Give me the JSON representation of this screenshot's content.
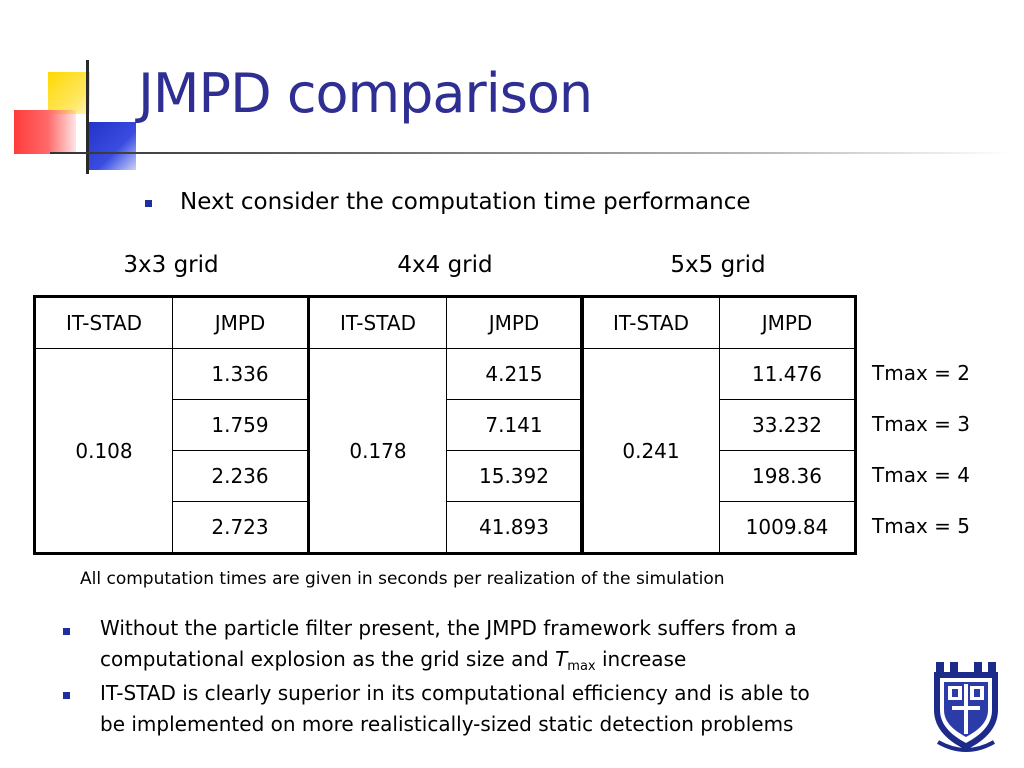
{
  "slide": {
    "title": "JMPD comparison",
    "intro_bullet": "Next consider the computation time performance"
  },
  "grids": [
    {
      "label": "3x3 grid",
      "col1": "IT-STAD",
      "col2": "JMPD",
      "itstad": "0.108",
      "jmpd": [
        "1.336",
        "1.759",
        "2.236",
        "2.723"
      ]
    },
    {
      "label": "4x4 grid",
      "col1": "IT-STAD",
      "col2": "JMPD",
      "itstad": "0.178",
      "jmpd": [
        "4.215",
        "7.141",
        "15.392",
        "41.893"
      ]
    },
    {
      "label": "5x5 grid",
      "col1": "IT-STAD",
      "col2": "JMPD",
      "itstad": "0.241",
      "jmpd": [
        "11.476",
        "33.232",
        "198.36",
        "1009.84"
      ]
    }
  ],
  "tmax_labels": [
    "Tmax = 2",
    "Tmax = 3",
    "Tmax = 4",
    "Tmax = 5"
  ],
  "note": "All computation times are given in seconds per realization of the simulation",
  "bullets": {
    "b1_line1": "Without the particle filter present, the JMPD framework suffers from a",
    "b1_line2_pre": "computational explosion as the grid size and ",
    "b1_var": "T",
    "b1_sub": "max",
    "b1_line2_post": " increase",
    "b2_line1": "IT-STAD is clearly superior in its computational efficiency and is able to",
    "b2_line2": "be implemented on more realistically-sized static detection problems"
  },
  "colors": {
    "title": "#2e2e93",
    "bullet": "#1f2fa0",
    "logo": "#1c2a8a"
  }
}
